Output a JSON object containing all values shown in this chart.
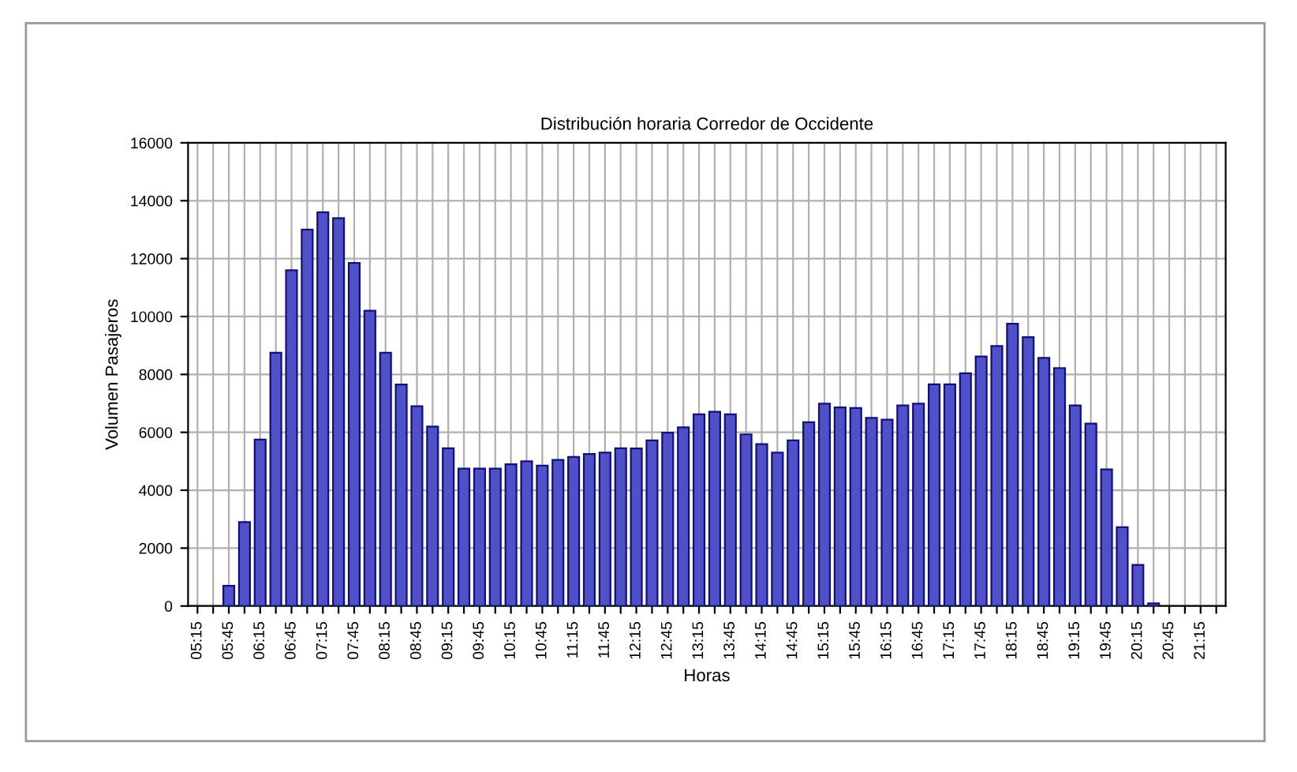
{
  "chart_data": {
    "type": "bar",
    "title": "Distribución horaria Corredor de Occidente",
    "xlabel": "Horas",
    "ylabel": "Volumen Pasajeros",
    "categories": [
      "05:15",
      null,
      "05:45",
      null,
      "06:15",
      null,
      "06:45",
      null,
      "07:15",
      null,
      "07:45",
      null,
      "08:15",
      null,
      "08:45",
      null,
      "09:15",
      null,
      "09:45",
      null,
      "10:15",
      null,
      "10:45",
      null,
      "11:15",
      null,
      "11:45",
      null,
      "12:15",
      null,
      "12:45",
      null,
      "13:15",
      null,
      "13:45",
      null,
      "14:15",
      null,
      "14:45",
      null,
      "15:15",
      null,
      "15:45",
      null,
      "16:15",
      null,
      "16:45",
      null,
      "17:15",
      null,
      "17:45",
      null,
      "18:15",
      null,
      "18:45",
      null,
      "19:15",
      null,
      "19:45",
      null,
      "20:15",
      null,
      "20:45",
      null,
      "21:15",
      null
    ],
    "values": [
      0,
      0,
      700,
      2900,
      5750,
      8750,
      11600,
      13000,
      13600,
      13400,
      11850,
      10200,
      8750,
      7650,
      6900,
      6200,
      5450,
      4750,
      4750,
      4750,
      4900,
      5000,
      4850,
      5050,
      5150,
      5250,
      5300,
      5450,
      5440,
      5720,
      5990,
      6170,
      6620,
      6710,
      6620,
      5930,
      5590,
      5300,
      5720,
      6350,
      6990,
      6860,
      6840,
      6500,
      6440,
      6930,
      6990,
      7660,
      7660,
      8040,
      8620,
      8980,
      9750,
      9290,
      8570,
      8220,
      6930,
      6300,
      4720,
      2720,
      1420,
      90,
      0,
      0,
      0,
      0
    ],
    "color": "#5050c8",
    "ylim": [
      0,
      16000
    ],
    "yticks": [
      0,
      2000,
      4000,
      6000,
      8000,
      10000,
      12000,
      14000,
      16000
    ],
    "grid": true
  }
}
